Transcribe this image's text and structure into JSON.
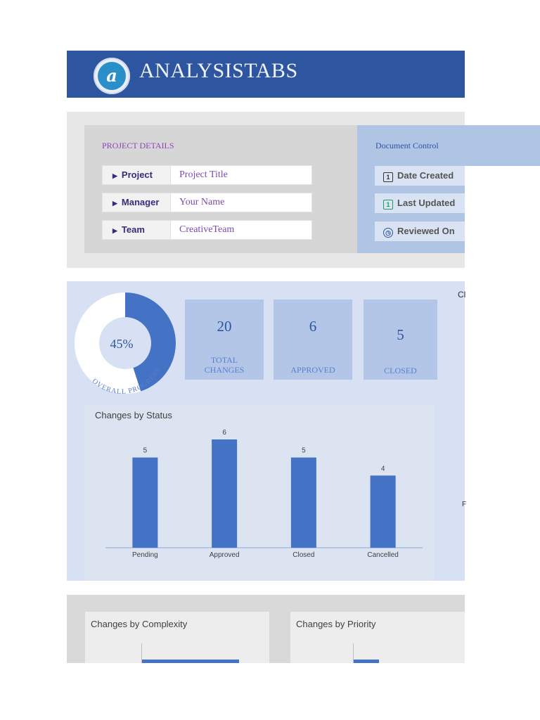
{
  "header": {
    "brand": "ANALYSISTABS",
    "logo_letter": "a"
  },
  "project_details": {
    "heading": "PROJECT DETAILS",
    "rows": [
      {
        "label": "Project",
        "value": "Project Title"
      },
      {
        "label": "Manager",
        "value": "Your Name"
      },
      {
        "label": "Team",
        "value": "CreativeTeam"
      }
    ]
  },
  "document_control": {
    "heading": "Document Control",
    "buttons": [
      {
        "label": "Date Created",
        "icon": "calendar-icon",
        "glyph": "1"
      },
      {
        "label": "Last Updated",
        "icon": "calendar-green-icon",
        "glyph": "1"
      },
      {
        "label": "Reviewed On",
        "icon": "clock-icon",
        "glyph": ""
      }
    ]
  },
  "progress": {
    "percent_text": "45%",
    "value": 0.45,
    "ring_label": "OVERALL PROGRESS"
  },
  "kpis": [
    {
      "value": "20",
      "label_line1": "TOTAL",
      "label_line2": "CHANGES"
    },
    {
      "value": "6",
      "label_line1": "APPROVED",
      "label_line2": ""
    },
    {
      "value": "5",
      "label_line1": "CLOSED",
      "label_line2": ""
    }
  ],
  "offpanel": {
    "label_top": "Cl",
    "label_mid": "F"
  },
  "chart_data": {
    "type": "bar",
    "title": "Changes by Status",
    "categories": [
      "Pending",
      "Approved",
      "Closed",
      "Cancelled"
    ],
    "values": [
      5,
      6,
      5,
      4
    ],
    "xlabel": "",
    "ylabel": "",
    "ylim": [
      0,
      6
    ],
    "grid": false,
    "bar_color": "#4472c4"
  },
  "bottom": {
    "complexity_title": "Changes by Complexity",
    "priority_title": "Changes by Priority"
  },
  "colors": {
    "header": "#2e55a0",
    "accent_blue": "#4472c4",
    "purple_text": "#8e44b8"
  }
}
